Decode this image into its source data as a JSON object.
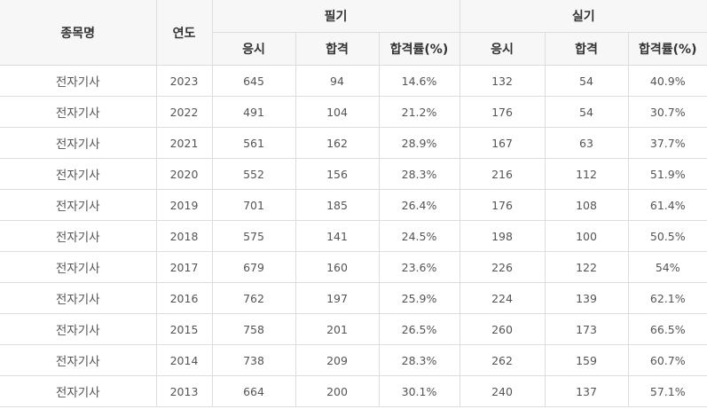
{
  "headers": {
    "item": "종목명",
    "year": "연도",
    "written": "필기",
    "practical": "실기",
    "applicants": "응시",
    "passed": "합격",
    "pass_rate": "합격률(%)"
  },
  "rows": [
    {
      "name": "전자기사",
      "year": "2023",
      "w_apply": "645",
      "w_pass": "94",
      "w_rate": "14.6%",
      "p_apply": "132",
      "p_pass": "54",
      "p_rate": "40.9%"
    },
    {
      "name": "전자기사",
      "year": "2022",
      "w_apply": "491",
      "w_pass": "104",
      "w_rate": "21.2%",
      "p_apply": "176",
      "p_pass": "54",
      "p_rate": "30.7%"
    },
    {
      "name": "전자기사",
      "year": "2021",
      "w_apply": "561",
      "w_pass": "162",
      "w_rate": "28.9%",
      "p_apply": "167",
      "p_pass": "63",
      "p_rate": "37.7%"
    },
    {
      "name": "전자기사",
      "year": "2020",
      "w_apply": "552",
      "w_pass": "156",
      "w_rate": "28.3%",
      "p_apply": "216",
      "p_pass": "112",
      "p_rate": "51.9%"
    },
    {
      "name": "전자기사",
      "year": "2019",
      "w_apply": "701",
      "w_pass": "185",
      "w_rate": "26.4%",
      "p_apply": "176",
      "p_pass": "108",
      "p_rate": "61.4%"
    },
    {
      "name": "전자기사",
      "year": "2018",
      "w_apply": "575",
      "w_pass": "141",
      "w_rate": "24.5%",
      "p_apply": "198",
      "p_pass": "100",
      "p_rate": "50.5%"
    },
    {
      "name": "전자기사",
      "year": "2017",
      "w_apply": "679",
      "w_pass": "160",
      "w_rate": "23.6%",
      "p_apply": "226",
      "p_pass": "122",
      "p_rate": "54%"
    },
    {
      "name": "전자기사",
      "year": "2016",
      "w_apply": "762",
      "w_pass": "197",
      "w_rate": "25.9%",
      "p_apply": "224",
      "p_pass": "139",
      "p_rate": "62.1%"
    },
    {
      "name": "전자기사",
      "year": "2015",
      "w_apply": "758",
      "w_pass": "201",
      "w_rate": "26.5%",
      "p_apply": "260",
      "p_pass": "173",
      "p_rate": "66.5%"
    },
    {
      "name": "전자기사",
      "year": "2014",
      "w_apply": "738",
      "w_pass": "209",
      "w_rate": "28.3%",
      "p_apply": "262",
      "p_pass": "159",
      "p_rate": "60.7%"
    },
    {
      "name": "전자기사",
      "year": "2013",
      "w_apply": "664",
      "w_pass": "200",
      "w_rate": "30.1%",
      "p_apply": "240",
      "p_pass": "137",
      "p_rate": "57.1%"
    }
  ]
}
